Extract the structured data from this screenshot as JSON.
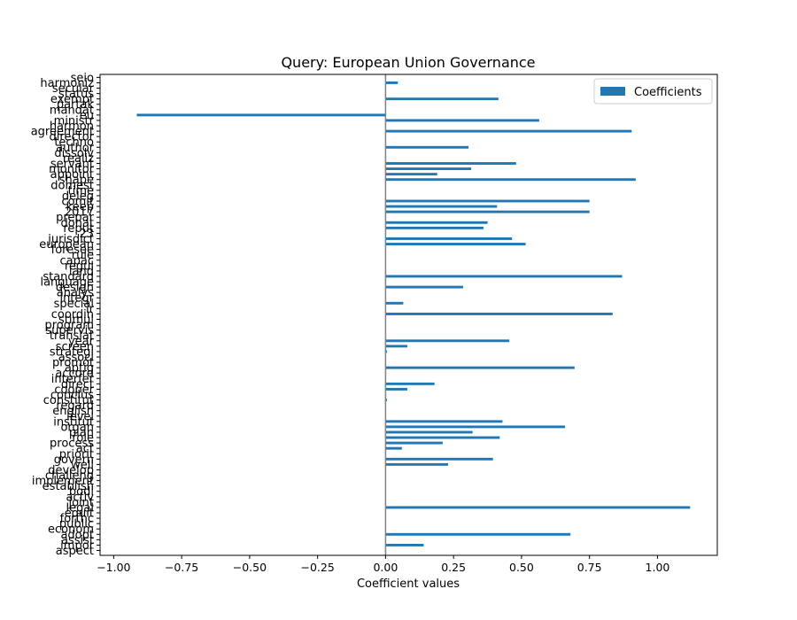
{
  "chart_data": {
    "type": "bar",
    "orientation": "horizontal",
    "title": "Query: European Union Governance",
    "xlabel": "Coefficient values",
    "ylabel": "",
    "xlim": [
      -1.05,
      1.22
    ],
    "xticks": [
      -1.0,
      -0.75,
      -0.5,
      -0.25,
      0.0,
      0.25,
      0.5,
      0.75,
      1.0
    ],
    "xtick_labels": [
      "−1.00",
      "−0.75",
      "−0.50",
      "−0.25",
      "0.00",
      "0.25",
      "0.50",
      "0.75",
      "1.00"
    ],
    "zero_line": true,
    "grid": false,
    "legend": {
      "position": "top-right",
      "label": "Coefficients"
    },
    "bar_color": "#1f77b4",
    "zero_line_color": "#808080",
    "categories": [
      "aspect",
      "impor",
      "assist",
      "adopt",
      "econom",
      "public",
      "forthc",
      "equit",
      "legal",
      "joint",
      "activ",
      "bodi",
      "establish",
      "implement",
      "challeng",
      "develop",
      "well",
      "govern",
      "priorit",
      "act",
      "process",
      "role",
      "plan",
      "organ",
      "institut",
      "level",
      "english",
      "regard",
      "constitut",
      "conclus",
      "cooper",
      "direct",
      "interfer",
      "accord",
      "aptig",
      "promot",
      "associ",
      "strategi",
      "screen",
      "year",
      "translat",
      "supervis",
      "program",
      "stimul",
      "coordin",
      "ir",
      "special",
      "integr",
      "analys",
      "design",
      "language",
      "standard",
      "land",
      "regul",
      "capac",
      "rule",
      "foresee",
      "european",
      "jurisdict",
      "23",
      "reput",
      "donat",
      "prepar",
      "2017",
      "keep",
      "comit",
      "deleg",
      "time",
      "domest",
      "shape",
      "appoint",
      "monitor",
      "servant",
      "realiz",
      "dissolv",
      "author",
      "techno",
      "director",
      "agreement",
      "harmon",
      "ministr",
      "eu",
      "mandat",
      "partak",
      "exempt",
      "status",
      "secular",
      "harmoniz",
      "seio"
    ],
    "values": [
      0.0,
      0.14,
      0.0,
      0.68,
      0.0,
      0.0,
      0.0,
      0.0,
      1.12,
      0.0,
      0.0,
      0.0,
      0.0,
      0.0,
      0.0,
      0.0,
      0.23,
      0.395,
      0.0,
      0.06,
      0.21,
      0.42,
      0.32,
      0.66,
      0.43,
      0.0,
      0.0,
      0.0,
      0.005,
      0.0,
      0.08,
      0.18,
      0.0,
      0.0,
      0.695,
      0.0,
      0.0,
      0.005,
      0.08,
      0.455,
      0.0,
      0.0,
      0.0,
      0.0,
      0.835,
      0.0,
      0.065,
      0.0,
      0.0,
      0.285,
      0.0,
      0.87,
      0.0,
      0.0,
      0.0,
      0.0,
      0.0,
      0.515,
      0.465,
      0.0,
      0.36,
      0.375,
      0.0,
      0.75,
      0.41,
      0.75,
      0.0,
      0.0,
      0.0,
      0.92,
      0.19,
      0.315,
      0.48,
      0.0,
      0.0,
      0.305,
      0.0,
      0.0,
      0.905,
      0.0,
      0.565,
      -0.915,
      0.0,
      0.0,
      0.415,
      0.0,
      0.0,
      0.045,
      0.0
    ]
  }
}
